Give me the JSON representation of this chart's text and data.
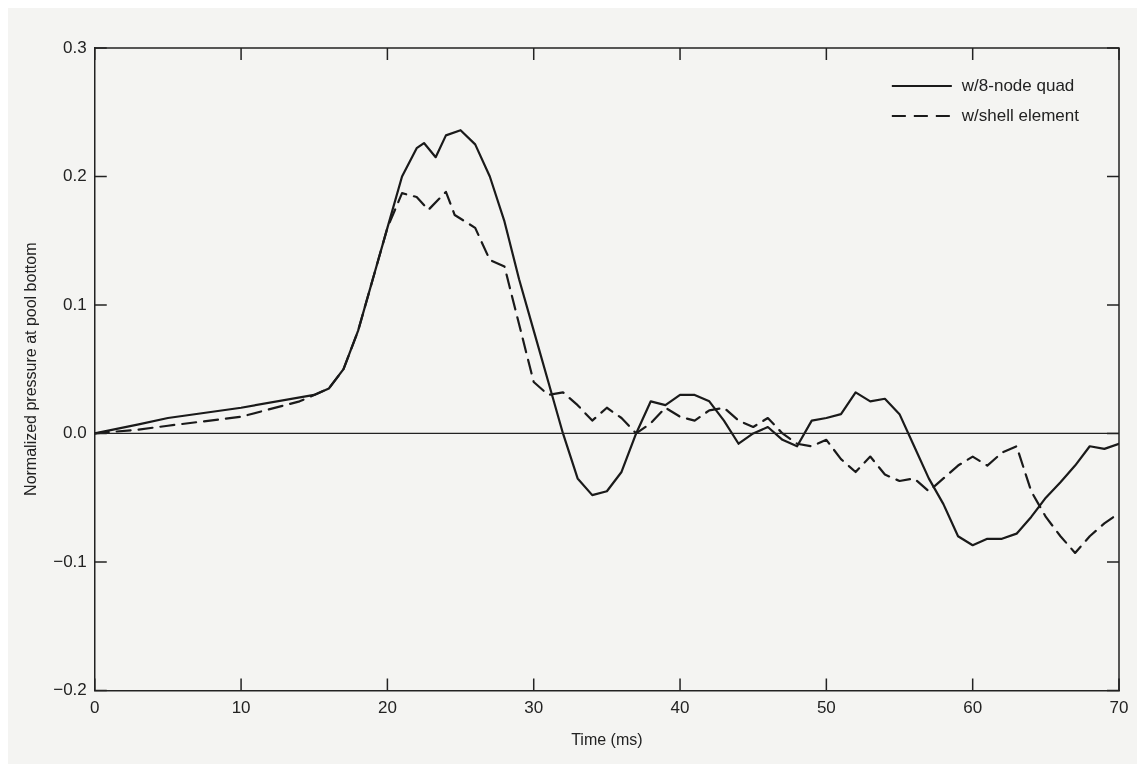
{
  "chart_data": {
    "type": "line",
    "xlabel": "Time (ms)",
    "ylabel": "Normalized pressure at pool bottom",
    "xlim": [
      0,
      70
    ],
    "xticks": [
      0,
      10,
      20,
      30,
      40,
      50,
      60,
      70
    ],
    "ylim": [
      -0.2,
      0.3
    ],
    "yticks": [
      {
        "value": -0.2,
        "label": "−0.2"
      },
      {
        "value": -0.1,
        "label": "−0.1"
      },
      {
        "value": 0,
        "label": "0.0"
      },
      0.1,
      0.2,
      0.3
    ],
    "grid": false,
    "legend": "top right",
    "marker": "none",
    "ref_lines": [
      {
        "axis": "y",
        "value": 0,
        "color": "#222222"
      }
    ],
    "series": [
      {
        "name": "w/8-node quad",
        "color": "#1a1a1a",
        "line_style": "solid",
        "x": [
          0,
          3,
          5,
          10,
          15,
          16,
          17,
          18,
          19,
          20,
          21,
          22,
          22.5,
          23.3,
          24,
          25,
          26,
          27,
          28,
          29,
          30,
          31,
          32,
          33,
          34,
          35,
          36,
          37,
          38,
          39,
          40,
          41,
          42,
          43,
          44,
          45,
          46,
          47,
          48,
          49,
          50,
          51,
          52,
          53,
          54,
          55,
          56,
          57,
          58,
          59,
          60,
          61,
          62,
          63,
          64,
          65,
          66,
          67,
          68,
          69,
          70
        ],
        "values": [
          0,
          0.007,
          0.012,
          0.02,
          0.03,
          0.035,
          0.05,
          0.08,
          0.12,
          0.16,
          0.2,
          0.222,
          0.226,
          0.215,
          0.232,
          0.236,
          0.225,
          0.2,
          0.165,
          0.12,
          0.08,
          0.04,
          0,
          -0.035,
          -0.048,
          -0.045,
          -0.03,
          0,
          0.025,
          0.022,
          0.03,
          0.03,
          0.025,
          0.01,
          -0.008,
          0,
          0.005,
          -0.005,
          -0.01,
          0.01,
          0.012,
          0.015,
          0.032,
          0.025,
          0.027,
          0.015,
          -0.01,
          -0.035,
          -0.055,
          -0.08,
          -0.087,
          -0.082,
          -0.082,
          -0.078,
          -0.065,
          -0.05,
          -0.038,
          -0.025,
          -0.01,
          -0.012,
          -0.008
        ]
      },
      {
        "name": "w/shell element",
        "color": "#1a1a1a",
        "line_style": "dashed",
        "x": [
          0,
          3,
          5,
          10,
          14,
          16,
          17,
          18,
          19,
          20,
          21,
          22,
          22.8,
          24,
          24.6,
          26,
          27,
          28,
          29,
          30,
          31,
          32,
          33,
          34,
          35,
          36,
          37,
          38,
          39,
          40,
          41,
          42,
          43,
          44,
          45,
          46,
          47,
          48,
          49,
          50,
          51,
          52,
          53,
          54,
          55,
          56,
          57,
          58,
          59,
          60,
          61,
          62,
          63,
          64,
          65,
          66,
          67,
          68,
          69,
          70
        ],
        "values": [
          0,
          0.003,
          0.006,
          0.013,
          0.025,
          0.035,
          0.05,
          0.08,
          0.12,
          0.16,
          0.187,
          0.184,
          0.174,
          0.188,
          0.17,
          0.16,
          0.135,
          0.13,
          0.085,
          0.04,
          0.03,
          0.032,
          0.022,
          0.01,
          0.02,
          0.012,
          0,
          0.008,
          0.02,
          0.013,
          0.01,
          0.018,
          0.02,
          0.01,
          0.005,
          0.012,
          0,
          -0.008,
          -0.01,
          -0.005,
          -0.02,
          -0.03,
          -0.018,
          -0.032,
          -0.037,
          -0.035,
          -0.045,
          -0.035,
          -0.025,
          -0.018,
          -0.025,
          -0.015,
          -0.01,
          -0.045,
          -0.065,
          -0.08,
          -0.093,
          -0.08,
          -0.07,
          -0.062
        ]
      }
    ]
  }
}
